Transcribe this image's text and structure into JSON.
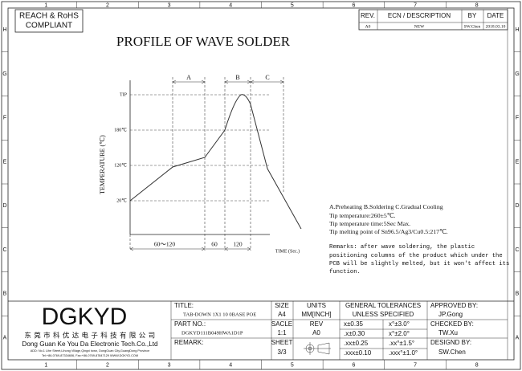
{
  "frame": {
    "columns": [
      "1",
      "2",
      "3",
      "4",
      "5",
      "6",
      "7",
      "8"
    ],
    "rows": [
      "H",
      "G",
      "F",
      "E",
      "D",
      "C",
      "B",
      "A"
    ]
  },
  "compliance": [
    "REACH & RoHS",
    "COMPLIANT"
  ],
  "revision": {
    "headers": [
      "REV.",
      "ECN / DESCRIPTION",
      "BY",
      "DATE"
    ],
    "row": [
      "A0",
      "NEW",
      "SW.Chen",
      "2018.03.10"
    ]
  },
  "title": "PROFILE OF WAVE SOLDER",
  "profile": {
    "y_label": "TEMPERATURE (℃)",
    "y_levels": [
      "TIP",
      "180℃",
      "120℃",
      "20℃"
    ],
    "phases": [
      "A",
      "B",
      "C"
    ],
    "durations": [
      "60～120",
      "60",
      "120"
    ],
    "x_label": "TIME (Sec.)"
  },
  "notes": [
    "A.Preheating B.Soldering C.Gradual Cooling",
    "Tip temperature:260±5℃.",
    "Tip temperature time:5Sec Max.",
    "Tip melting point of Sn96.5/Ag3/Cu0.5:217℃."
  ],
  "remarks": [
    "Remarks: after wave soldering, the plastic",
    "positioning columns of the product  which under the",
    "PCB will be slightly melted, but it won't affect its",
    "function."
  ],
  "company": {
    "logo": "DGKYD",
    "name_cn": "东 莞 市 科 优 达 电 子 科 技 有 限 公 司",
    "name_en": "Dong Guan Ke You Da Electronic Tech.Co.,Ltd",
    "address": "ADD: No.1 Lihe Street,Lihong Village,Qingxi town, DongGuan City,GuangDong Province",
    "contact": "Tel:+86-0769-87334606, Fax:+86-0769-87847129 WWW.DGKYD.COM"
  },
  "title_block": {
    "title_label": "TITLE:",
    "title": "TAB-DOWN 1X1 10 0BASE POE",
    "part_label": "PART NO.:",
    "part_no": "DGKYD111B049HWA1D1P",
    "remark_label": "REMARK:",
    "size_label": "SIZE",
    "size": "A4",
    "scale_label": "SACLE",
    "scale": "1:1",
    "sheet_label": "SHEET",
    "sheet": "3/3",
    "units_label": "UNITS",
    "units": "MM[INCH]",
    "rev_label": "REV",
    "rev": "A0",
    "tolerances_label": [
      "GENERAL TOLERANCES",
      "UNLESS SPECIFIED"
    ],
    "tolerances": [
      [
        "x±0.35",
        "x°±3.0°"
      ],
      [
        ".x±0.30",
        "x°±2.0°"
      ],
      [
        ".xx±0.25",
        ".xx°±1.5°"
      ],
      [
        ".xxx±0.10",
        ".xxx°±1.0°"
      ]
    ],
    "approved_label": "APPROVED BY:",
    "approved": "JP.Gong",
    "checked_label": "CHECKED BY:",
    "checked": "TW.Xu",
    "designed_label": "DESIGND BY:",
    "designed": "SW.Chen"
  }
}
